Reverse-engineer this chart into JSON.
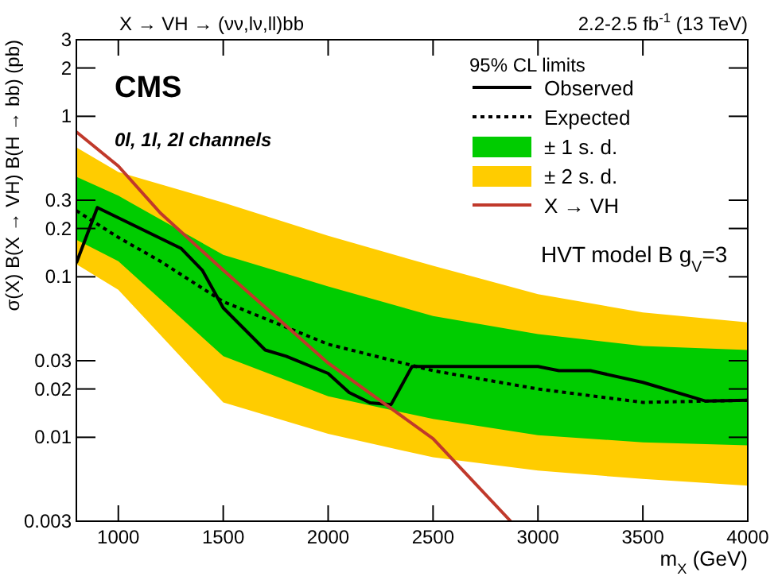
{
  "chart_data": {
    "type": "line",
    "title": "X → VH → (νν,lν,ll)bb",
    "subtitle": "2.2-2.5 fb$^{-1}$ (13 TeV)",
    "xlabel": "m$_{X}$ (GeV)",
    "ylabel": "σ(X) B(X → VH) B(H → bb) (pb)",
    "legend_title": "95% CL limits",
    "legend": "top right",
    "log": "y",
    "grid": false,
    "xlim": [
      800,
      4000
    ],
    "xticks": [
      1000,
      1500,
      2000,
      2500,
      3000,
      3500,
      4000
    ],
    "ylim": [
      0.003,
      3
    ],
    "yticks": [
      0.003,
      0.01,
      0.02,
      0.03,
      0.1,
      0.2,
      0.3,
      1,
      2,
      3
    ],
    "annotations": [
      "CMS",
      "0l, 1l, 2l channels",
      "HVT model B g$_{V}$=3"
    ],
    "series": [
      {
        "name": "± 2 s. d.",
        "color": "#ffcc00",
        "x": [
          800,
          1000,
          1500,
          2000,
          2500,
          3000,
          3500,
          4000
        ],
        "values": [
          null,
          null,
          null,
          null,
          null,
          null,
          null,
          null
        ],
        "lower": [
          0.12,
          0.083,
          0.0165,
          0.0105,
          0.0075,
          0.0062,
          0.0055,
          0.005
        ],
        "upper": [
          0.64,
          0.45,
          0.29,
          0.18,
          0.117,
          0.078,
          0.06,
          0.052
        ]
      },
      {
        "name": "± 1 s. d.",
        "color": "#00cc00",
        "x": [
          800,
          1000,
          1500,
          2000,
          2500,
          3000,
          3500,
          4000
        ],
        "values": [
          null,
          null,
          null,
          null,
          null,
          null,
          null,
          null
        ],
        "lower": [
          0.17,
          0.125,
          0.032,
          0.018,
          0.013,
          0.0103,
          0.0093,
          0.0089
        ],
        "upper": [
          0.42,
          0.32,
          0.137,
          0.087,
          0.057,
          0.044,
          0.037,
          0.035
        ]
      },
      {
        "name": "Expected",
        "line_style": "dotted",
        "color": "#000000",
        "x": [
          800,
          1000,
          1200,
          1500,
          2000,
          2500,
          3000,
          3500,
          4000
        ],
        "values": [
          0.258,
          0.176,
          0.125,
          0.07,
          0.038,
          0.026,
          0.02,
          0.0165,
          0.017
        ]
      },
      {
        "name": "Observed",
        "line_style": "solid",
        "color": "#000000",
        "x": [
          800,
          900,
          1300,
          1400,
          1500,
          1700,
          1800,
          2000,
          2100,
          2200,
          2300,
          2400,
          3000,
          3100,
          3250,
          3500,
          3800,
          4000
        ],
        "values": [
          0.122,
          0.27,
          0.15,
          0.11,
          0.064,
          0.035,
          0.032,
          0.025,
          0.019,
          0.0164,
          0.016,
          0.0276,
          0.0276,
          0.026,
          0.026,
          0.022,
          0.0168,
          0.017
        ]
      },
      {
        "name": "X → VH",
        "line_style": "solid",
        "color": "#c0392b",
        "x": [
          800,
          1000,
          1200,
          1500,
          2000,
          2500,
          2870
        ],
        "values": [
          0.8,
          0.49,
          0.25,
          0.11,
          0.029,
          0.0098,
          0.003
        ]
      }
    ]
  }
}
